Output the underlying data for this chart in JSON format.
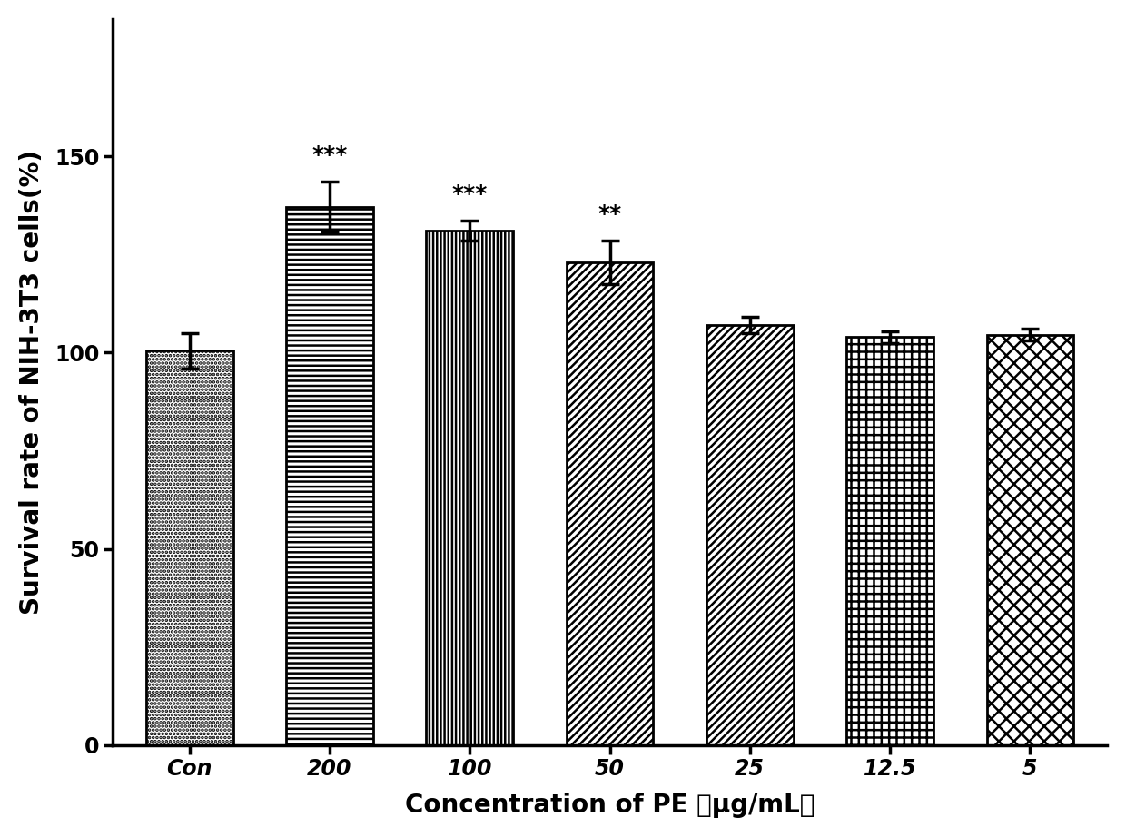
{
  "categories": [
    "Con",
    "200",
    "100",
    "50",
    "25",
    "12.5",
    "5"
  ],
  "values": [
    100.5,
    137.0,
    131.0,
    123.0,
    107.0,
    104.0,
    104.5
  ],
  "errors": [
    4.5,
    6.5,
    2.5,
    5.5,
    2.0,
    1.5,
    1.5
  ],
  "significance": [
    "",
    "***",
    "***",
    "**",
    "",
    "",
    ""
  ],
  "hatch_patterns": [
    "....",
    "----",
    "||||",
    "////",
    "////",
    "++",
    "xx"
  ],
  "ylabel": "Survival rate of NIH-3T3 cells(%)",
  "xlabel": "Concentration of PE （μg/mL）",
  "ylim": [
    0,
    185
  ],
  "yticks": [
    0,
    50,
    100,
    150
  ],
  "sig_fontsize": 18,
  "label_fontsize": 20,
  "tick_fontsize": 17,
  "bar_width": 0.62,
  "background_color": "#ffffff",
  "spine_linewidth": 2.5,
  "bar_linewidth": 2.0,
  "errorbar_capsize": 7,
  "errorbar_capthick": 2.5,
  "errorbar_elinewidth": 2.5
}
